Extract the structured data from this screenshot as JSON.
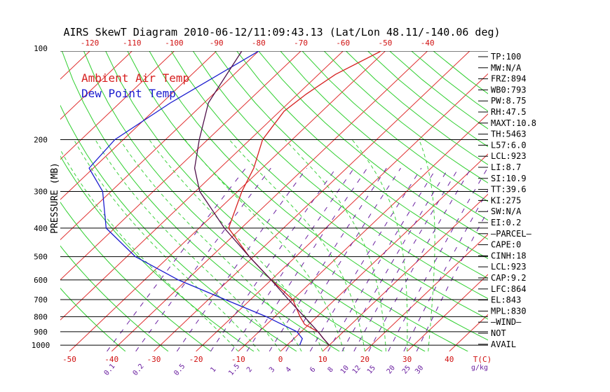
{
  "title": "AIRS SkewT Diagram 2010-06-12/11:09:43.13 (Lat/Lon 48.11/-140.06 deg)",
  "legend": {
    "ambient_label": "Ambient Air Temp",
    "dewpoint_label": "Dew Point Temp",
    "ambient_color": "#d62020",
    "dewpoint_color": "#1c1ccf"
  },
  "colors": {
    "isotherm": "#e03030",
    "dry_adiabat": "#2fcf2f",
    "moist_adiabat": "#3fd23f",
    "mixing_ratio": "#6a1fa0",
    "parcel": "#50104a",
    "isobar": "#000000",
    "tick_red": "#d01010",
    "mix_label": "#6a1fa0"
  },
  "axes": {
    "ylabel": "PRESSURE (MB)",
    "x_bottom_unit": "T(C)",
    "x_mix_unit": "g/kg",
    "x_top_ticks": [
      "-120",
      "-110",
      "-100",
      "-90",
      "-80",
      "-70",
      "-60",
      "-50",
      "-40"
    ],
    "x_bottom_ticks": [
      "-50",
      "-40",
      "-30",
      "-20",
      "-10",
      "0",
      "10",
      "20",
      "30",
      "40"
    ],
    "y_ticks": [
      "100",
      "200",
      "300",
      "400",
      "500",
      "600",
      "700",
      "800",
      "900",
      "1000"
    ],
    "mixing_ratio_ticks": [
      "0.1",
      "0.2",
      "0.5",
      "1",
      "1.5",
      "2",
      "3",
      "4",
      "6",
      "8",
      "10",
      "12",
      "15",
      "20",
      "25",
      "30"
    ]
  },
  "right_panel": [
    "TP:100",
    "MW:N/A",
    "FRZ:894",
    "WB0:793",
    "PW:8.75",
    "RH:47.5",
    "MAXT:10.8",
    "TH:5463",
    "L57:6.0",
    "LCL:923",
    "LI:8.7",
    "SI:10.9",
    "TT:39.6",
    "KI:275",
    "SW:N/A",
    "EI:0.2",
    "—PARCEL—",
    "CAPE:0",
    "CINH:18",
    "LCL:923",
    "CAP:9.2",
    "LFC:864",
    "EL:843",
    "MPL:830",
    "—WIND—",
    "NOT",
    "AVAIL"
  ],
  "chart_data": {
    "type": "line",
    "title": "AIRS SkewT Diagram 2010-06-12/11:09:43.13 (Lat/Lon 48.11/-140.06 deg)",
    "ylabel": "PRESSURE (MB)",
    "y_scale": "log",
    "y_range_mb": [
      100,
      1050
    ],
    "x_unit": "T(C)",
    "series": [
      {
        "name": "Ambient Air Temp",
        "points": [
          [
            100,
            -51
          ],
          [
            120,
            -56
          ],
          [
            140,
            -58
          ],
          [
            160,
            -59
          ],
          [
            200,
            -57
          ],
          [
            250,
            -52
          ],
          [
            300,
            -49
          ],
          [
            400,
            -43
          ],
          [
            500,
            -31
          ],
          [
            600,
            -20
          ],
          [
            700,
            -10
          ],
          [
            800,
            -4
          ],
          [
            850,
            -1
          ],
          [
            900,
            4
          ],
          [
            950,
            7
          ],
          [
            1000,
            10
          ]
        ]
      },
      {
        "name": "Dew Point Temp",
        "points": [
          [
            100,
            -80
          ],
          [
            150,
            -88
          ],
          [
            200,
            -92
          ],
          [
            250,
            -91
          ],
          [
            300,
            -82
          ],
          [
            400,
            -72
          ],
          [
            500,
            -58
          ],
          [
            600,
            -42
          ],
          [
            700,
            -26
          ],
          [
            800,
            -12
          ],
          [
            900,
            -1
          ],
          [
            950,
            2
          ],
          [
            1000,
            3
          ]
        ]
      },
      {
        "points": [
          [
            100,
            -84
          ],
          [
            150,
            -79
          ],
          [
            200,
            -72
          ],
          [
            250,
            -66
          ],
          [
            300,
            -59
          ],
          [
            400,
            -44
          ],
          [
            500,
            -31
          ],
          [
            600,
            -20
          ],
          [
            700,
            -11
          ],
          [
            800,
            -3
          ],
          [
            900,
            4
          ],
          [
            950,
            7
          ],
          [
            1000,
            10
          ]
        ]
      }
    ]
  }
}
